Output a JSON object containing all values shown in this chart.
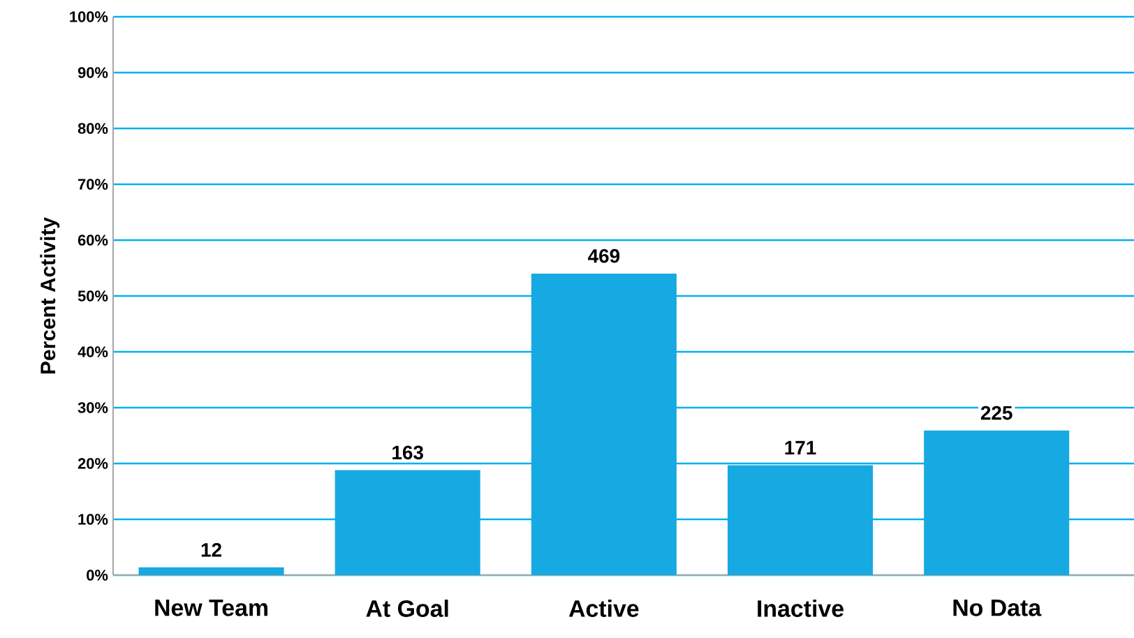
{
  "chart_data": {
    "type": "bar",
    "ylabel": "Percent Activity",
    "categories": [
      "New Team",
      "At Goal",
      "Active",
      "Inactive",
      "No Data"
    ],
    "values": [
      1.4,
      18.8,
      54.0,
      19.7,
      25.9
    ],
    "annotations": [
      {
        "text": "12",
        "x": "New Team",
        "y": 1.4
      },
      {
        "text": "163",
        "x": "At Goal",
        "y": 18.8
      },
      {
        "text": "469",
        "x": "Active",
        "y": 54.0
      },
      {
        "text": "171",
        "x": "Inactive",
        "y": 19.7
      },
      {
        "text": "225",
        "x": "No Data",
        "y": 25.9
      }
    ],
    "color": "#17a9e1",
    "ylim": [
      0,
      100
    ],
    "yticks": [
      {
        "value": 0,
        "label": "0%"
      },
      {
        "value": 10,
        "label": "10%"
      },
      {
        "value": 20,
        "label": "20%"
      },
      {
        "value": 30,
        "label": "30%"
      },
      {
        "value": 40,
        "label": "40%"
      },
      {
        "value": 50,
        "label": "50%"
      },
      {
        "value": 60,
        "label": "60%"
      },
      {
        "value": 70,
        "label": "70%"
      },
      {
        "value": 80,
        "label": "80%"
      },
      {
        "value": 90,
        "label": "90%"
      },
      {
        "value": 100,
        "label": "100%"
      }
    ],
    "grid": "y"
  }
}
